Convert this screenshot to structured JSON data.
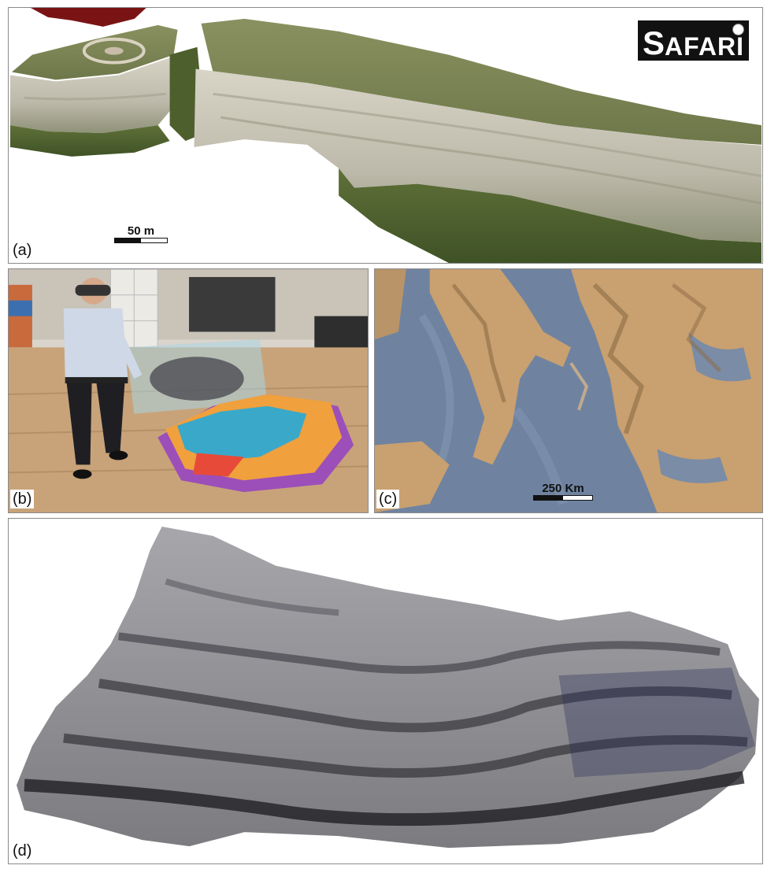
{
  "panels": {
    "a": {
      "label": "(a)",
      "scale_text": "50 m",
      "logo": {
        "first": "S",
        "rest": "AFARI"
      }
    },
    "b": {
      "label": "(b)"
    },
    "c": {
      "label": "(c)",
      "scale_text": "250 Km"
    },
    "d": {
      "label": "(d)"
    }
  },
  "colors": {
    "cliff_rock": "#c9c6b8",
    "cliff_grass": "#6f7a48",
    "map_sea": "#6f83a0",
    "map_land": "#c9a070",
    "relief_grey": "#8e8e92",
    "holo_orange": "#f0a03c",
    "holo_cyan": "#3aa9c9",
    "holo_purple": "#9c4fb8"
  }
}
